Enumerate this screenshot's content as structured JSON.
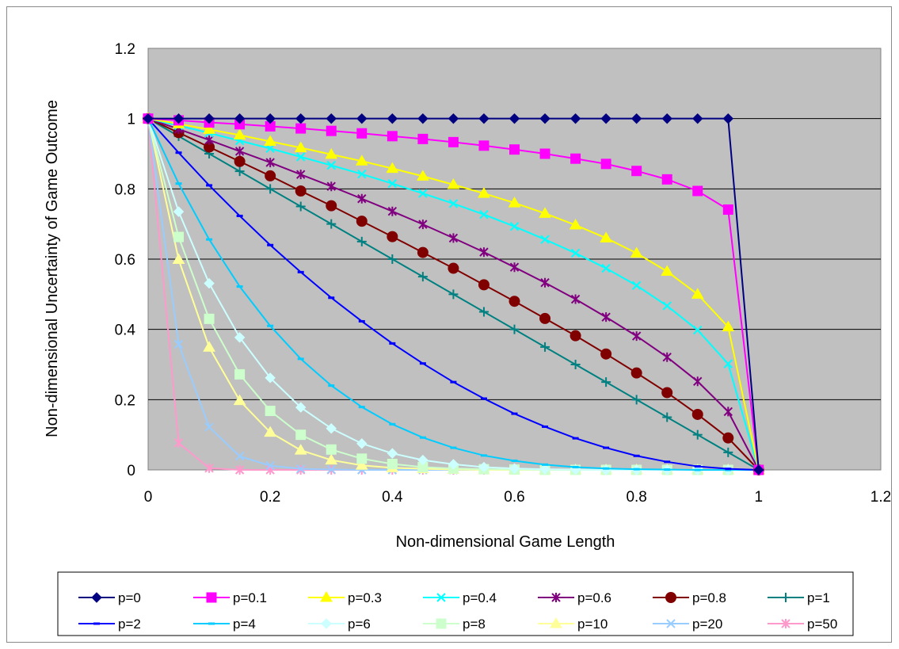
{
  "chart_data": {
    "type": "line",
    "xlabel": "Non-dimensional Game Length",
    "ylabel": "Non-dimensional Uncertainty of Game Outcome",
    "xlim": [
      0,
      1.2
    ],
    "ylim": [
      0,
      1.2
    ],
    "x_ticks": [
      "0",
      "0.2",
      "0.4",
      "0.6",
      "0.8",
      "1",
      "1.2"
    ],
    "y_ticks": [
      "0",
      "0.2",
      "0.4",
      "0.6",
      "0.8",
      "1",
      "1.2"
    ],
    "x": [
      0,
      0.05,
      0.1,
      0.15,
      0.2,
      0.25,
      0.3,
      0.35,
      0.4,
      0.45,
      0.5,
      0.55,
      0.6,
      0.65,
      0.7,
      0.75,
      0.8,
      0.85,
      0.9,
      0.95,
      1
    ],
    "grid": "horizontal",
    "plot_background": "#c0c0c0",
    "legend_position": "bottom",
    "series": [
      {
        "name": "p=0",
        "color": "#000080",
        "marker": "diamond",
        "values": [
          1,
          1,
          1,
          1,
          1,
          1,
          1,
          1,
          1,
          1,
          1,
          1,
          1,
          1,
          1,
          1,
          1,
          1,
          1,
          1,
          0
        ]
      },
      {
        "name": "p=0.1",
        "color": "#ff00ff",
        "marker": "square",
        "values": [
          1,
          0.995,
          0.989,
          0.984,
          0.978,
          0.972,
          0.965,
          0.958,
          0.95,
          0.942,
          0.933,
          0.923,
          0.912,
          0.9,
          0.886,
          0.871,
          0.851,
          0.827,
          0.794,
          0.741,
          0
        ]
      },
      {
        "name": "p=0.3",
        "color": "#ffff00",
        "marker": "triangle",
        "values": [
          1,
          0.985,
          0.969,
          0.953,
          0.935,
          0.917,
          0.898,
          0.879,
          0.858,
          0.836,
          0.812,
          0.787,
          0.76,
          0.73,
          0.697,
          0.66,
          0.617,
          0.565,
          0.5,
          0.407,
          0
        ]
      },
      {
        "name": "p=0.4",
        "color": "#00ffff",
        "marker": "x",
        "values": [
          1,
          0.98,
          0.959,
          0.937,
          0.915,
          0.891,
          0.867,
          0.842,
          0.815,
          0.787,
          0.758,
          0.727,
          0.693,
          0.656,
          0.617,
          0.574,
          0.525,
          0.467,
          0.398,
          0.302,
          0
        ]
      },
      {
        "name": "p=0.6",
        "color": "#800080",
        "marker": "star",
        "values": [
          1,
          0.97,
          0.939,
          0.907,
          0.875,
          0.841,
          0.807,
          0.772,
          0.736,
          0.699,
          0.66,
          0.62,
          0.577,
          0.533,
          0.486,
          0.435,
          0.381,
          0.321,
          0.252,
          0.166,
          0
        ]
      },
      {
        "name": "p=0.8",
        "color": "#800000",
        "marker": "circle",
        "values": [
          1,
          0.96,
          0.919,
          0.878,
          0.837,
          0.794,
          0.752,
          0.708,
          0.664,
          0.619,
          0.574,
          0.527,
          0.48,
          0.431,
          0.382,
          0.33,
          0.276,
          0.22,
          0.158,
          0.091,
          0
        ]
      },
      {
        "name": "p=1",
        "color": "#008080",
        "marker": "plus",
        "values": [
          1,
          0.95,
          0.9,
          0.85,
          0.8,
          0.75,
          0.7,
          0.65,
          0.6,
          0.55,
          0.5,
          0.45,
          0.4,
          0.35,
          0.3,
          0.25,
          0.2,
          0.15,
          0.1,
          0.05,
          0
        ]
      },
      {
        "name": "p=2",
        "color": "#0000ff",
        "marker": "dash",
        "values": [
          1,
          0.903,
          0.81,
          0.723,
          0.64,
          0.563,
          0.49,
          0.423,
          0.36,
          0.303,
          0.25,
          0.203,
          0.16,
          0.123,
          0.09,
          0.063,
          0.04,
          0.023,
          0.01,
          0.003,
          0
        ]
      },
      {
        "name": "p=4",
        "color": "#00ccff",
        "marker": "dash",
        "values": [
          1,
          0.815,
          0.656,
          0.522,
          0.41,
          0.316,
          0.24,
          0.179,
          0.13,
          0.092,
          0.063,
          0.041,
          0.026,
          0.015,
          0.008,
          0.004,
          0.002,
          0.001,
          0,
          0,
          0
        ]
      },
      {
        "name": "p=6",
        "color": "#ccffff",
        "marker": "diamond",
        "values": [
          1,
          0.735,
          0.531,
          0.377,
          0.262,
          0.178,
          0.118,
          0.075,
          0.047,
          0.028,
          0.016,
          0.008,
          0.004,
          0.002,
          0.001,
          0,
          0,
          0,
          0,
          0,
          0
        ]
      },
      {
        "name": "p=8",
        "color": "#ccffcc",
        "marker": "square",
        "values": [
          1,
          0.663,
          0.43,
          0.272,
          0.168,
          0.1,
          0.058,
          0.032,
          0.017,
          0.008,
          0.004,
          0.002,
          0.001,
          0,
          0,
          0,
          0,
          0,
          0,
          0,
          0
        ]
      },
      {
        "name": "p=10",
        "color": "#ffff99",
        "marker": "triangle",
        "values": [
          1,
          0.599,
          0.349,
          0.197,
          0.107,
          0.056,
          0.028,
          0.013,
          0.006,
          0.003,
          0.001,
          0,
          0,
          0,
          0,
          0,
          0,
          0,
          0,
          0,
          0
        ]
      },
      {
        "name": "p=20",
        "color": "#99ccff",
        "marker": "x",
        "values": [
          1,
          0.358,
          0.122,
          0.039,
          0.012,
          0.003,
          0.001,
          0,
          0,
          0,
          0,
          0,
          0,
          0,
          0,
          0,
          0,
          0,
          0,
          0,
          0
        ]
      },
      {
        "name": "p=50",
        "color": "#ff99cc",
        "marker": "star",
        "values": [
          1,
          0.077,
          0.005,
          0,
          0,
          0,
          0,
          0,
          0,
          0,
          0,
          0,
          0,
          0,
          0,
          0,
          0,
          0,
          0,
          0,
          0
        ]
      }
    ]
  }
}
